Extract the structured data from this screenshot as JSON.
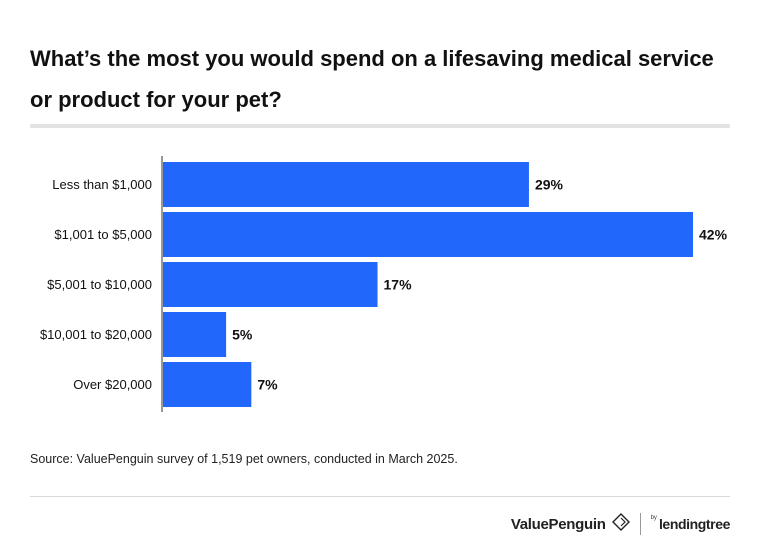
{
  "title": "What’s the most you would spend on a lifesaving medical service or product for your pet?",
  "source": "Source: ValuePenguin survey of 1,519 pet owners, conducted in March 2025.",
  "brand": {
    "valuepenguin": "ValuePenguin",
    "by": "by",
    "lendingtree": "lendingtree"
  },
  "colors": {
    "bar": "#2167fb",
    "axis": "#333333",
    "text": "#111111"
  },
  "chart_data": {
    "type": "bar",
    "orientation": "horizontal",
    "categories": [
      "Less than $1,000",
      "$1,001 to $5,000",
      "$5,001 to $10,000",
      "$10,001 to $20,000",
      "Over $20,000"
    ],
    "values": [
      29,
      42,
      17,
      5,
      7
    ],
    "data_labels": [
      "29%",
      "42%",
      "17%",
      "5%",
      "7%"
    ],
    "xlim": [
      0,
      42
    ],
    "grid": false,
    "legend": "none"
  }
}
